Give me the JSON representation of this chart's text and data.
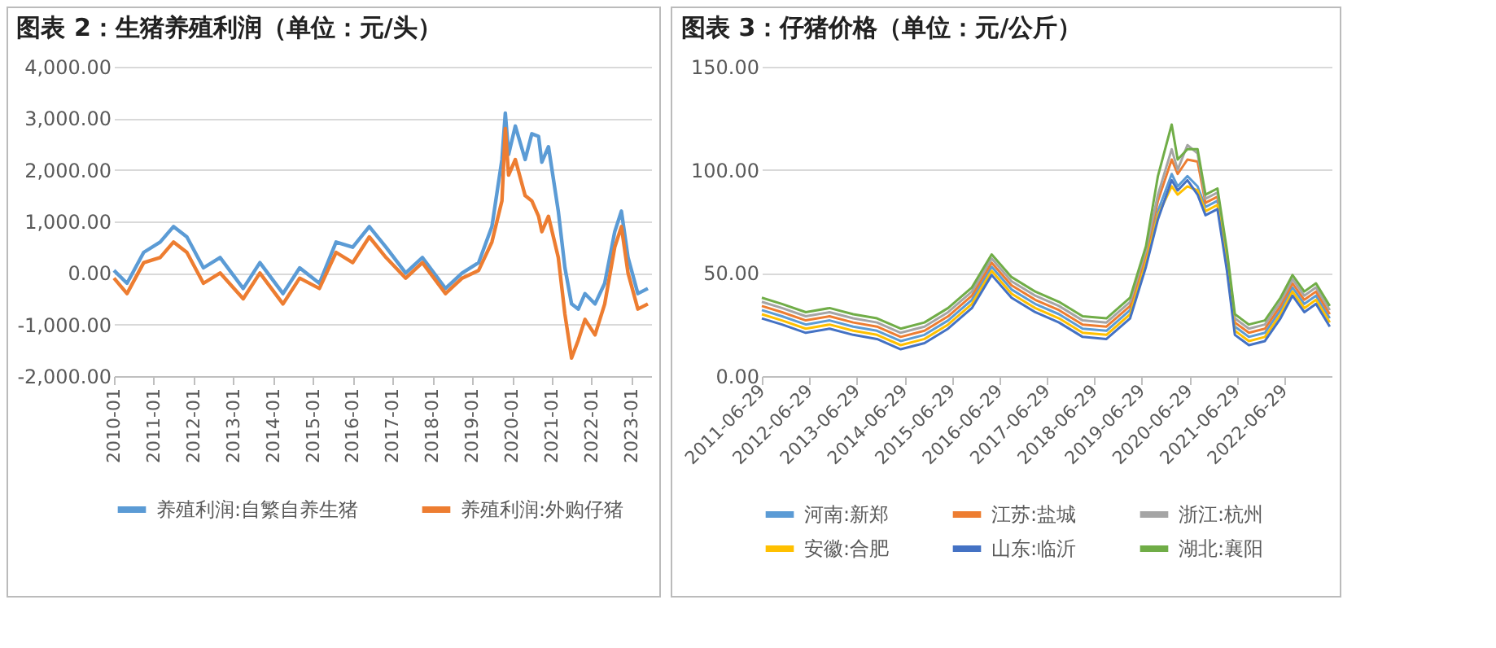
{
  "chart_data": [
    {
      "type": "line",
      "title": "图表 2：生猪养殖利润（单位：元/头）",
      "x": [
        "2010-01",
        "2010-05",
        "2010-10",
        "2011-03",
        "2011-07",
        "2011-11",
        "2012-04",
        "2012-09",
        "2013-04",
        "2013-09",
        "2014-04",
        "2014-09",
        "2015-03",
        "2015-08",
        "2016-01",
        "2016-06",
        "2016-11",
        "2017-05",
        "2017-10",
        "2018-05",
        "2018-10",
        "2019-03",
        "2019-07",
        "2019-10",
        "2019-11",
        "2019-12",
        "2020-02",
        "2020-05",
        "2020-07",
        "2020-09",
        "2020-10",
        "2020-12",
        "2021-03",
        "2021-05",
        "2021-07",
        "2021-09",
        "2021-11",
        "2022-02",
        "2022-05",
        "2022-08",
        "2022-10",
        "2022-12",
        "2023-03",
        "2023-06"
      ],
      "series": [
        {
          "name": "养殖利润:自繁自养生猪",
          "color": "#5b9bd5",
          "values": [
            50,
            -200,
            400,
            600,
            900,
            700,
            100,
            300,
            -300,
            200,
            -400,
            100,
            -200,
            600,
            500,
            900,
            500,
            0,
            300,
            -300,
            0,
            200,
            900,
            2200,
            3100,
            2300,
            2850,
            2200,
            2700,
            2650,
            2150,
            2450,
            1200,
            100,
            -600,
            -700,
            -400,
            -600,
            -200,
            800,
            1200,
            300,
            -400,
            -300
          ]
        },
        {
          "name": "养殖利润:外购仔猪",
          "color": "#ed7d31",
          "values": [
            -100,
            -400,
            200,
            300,
            600,
            400,
            -200,
            0,
            -500,
            0,
            -600,
            -100,
            -300,
            400,
            200,
            700,
            300,
            -100,
            200,
            -400,
            -100,
            50,
            600,
            1400,
            2800,
            1900,
            2200,
            1500,
            1400,
            1100,
            800,
            1100,
            300,
            -800,
            -1650,
            -1300,
            -900,
            -1200,
            -600,
            500,
            900,
            0,
            -700,
            -600
          ]
        }
      ],
      "xlim": [
        "2010-01",
        "2023-07"
      ],
      "xticks": [
        {
          "value": "2010-01",
          "label": "2010-01"
        },
        {
          "value": "2011-01",
          "label": "2011-01"
        },
        {
          "value": "2012-01",
          "label": "2012-01"
        },
        {
          "value": "2013-01",
          "label": "2013-01"
        },
        {
          "value": "2014-01",
          "label": "2014-01"
        },
        {
          "value": "2015-01",
          "label": "2015-01"
        },
        {
          "value": "2016-01",
          "label": "2016-01"
        },
        {
          "value": "2017-01",
          "label": "2017-01"
        },
        {
          "value": "2018-01",
          "label": "2018-01"
        },
        {
          "value": "2019-01",
          "label": "2019-01"
        },
        {
          "value": "2020-01",
          "label": "2020-01"
        },
        {
          "value": "2021-01",
          "label": "2021-01"
        },
        {
          "value": "2022-01",
          "label": "2022-01"
        },
        {
          "value": "2023-01",
          "label": "2023-01"
        }
      ],
      "ylim": [
        -2000,
        4000
      ],
      "yticks": [
        {
          "value": -2000,
          "label": "-2,000.00"
        },
        {
          "value": -1000,
          "label": "-1,000.00"
        },
        {
          "value": 0,
          "label": "0.00"
        },
        {
          "value": 1000,
          "label": "1,000.00"
        },
        {
          "value": 2000,
          "label": "2,000.00"
        },
        {
          "value": 3000,
          "label": "3,000.00"
        },
        {
          "value": 4000,
          "label": "4,000.00"
        }
      ],
      "grid": "y",
      "legend": "bottom"
    },
    {
      "type": "line",
      "title": "图表 3：仔猪价格（单位：元/公斤）",
      "x": [
        "2011-06-29",
        "2011-12-01",
        "2012-06-01",
        "2012-12-01",
        "2013-06-01",
        "2013-12-01",
        "2014-06-01",
        "2014-12-01",
        "2015-06-01",
        "2015-12-01",
        "2016-05-01",
        "2016-10-01",
        "2017-04-01",
        "2017-10-01",
        "2018-04-01",
        "2018-10-01",
        "2019-04-01",
        "2019-08-01",
        "2019-11-01",
        "2020-02-15",
        "2020-04-01",
        "2020-06-15",
        "2020-09-01",
        "2020-11-01",
        "2021-02-01",
        "2021-04-15",
        "2021-06-15",
        "2021-10-01",
        "2022-02-01",
        "2022-06-01",
        "2022-09-01",
        "2022-12-01",
        "2023-03-01",
        "2023-06-15"
      ],
      "series": [
        {
          "name": "河南:新郑",
          "color": "#5b9bd5",
          "values": [
            32,
            29,
            25,
            27,
            24,
            22,
            17,
            20,
            27,
            37,
            53,
            42,
            35,
            30,
            23,
            22,
            32,
            57,
            80,
            98,
            92,
            97,
            92,
            82,
            85,
            55,
            24,
            19,
            21,
            32,
            43,
            35,
            39,
            28
          ]
        },
        {
          "name": "江苏:盐城",
          "color": "#ed7d31",
          "values": [
            34,
            31,
            27,
            29,
            26,
            24,
            19,
            22,
            29,
            39,
            55,
            44,
            37,
            32,
            25,
            24,
            34,
            59,
            85,
            105,
            98,
            105,
            104,
            84,
            87,
            57,
            26,
            21,
            23,
            34,
            45,
            37,
            41,
            30
          ]
        },
        {
          "name": "浙江:杭州",
          "color": "#a5a5a5",
          "values": [
            36,
            33,
            29,
            31,
            28,
            26,
            21,
            24,
            31,
            41,
            57,
            46,
            39,
            34,
            27,
            26,
            36,
            61,
            88,
            110,
            100,
            112,
            108,
            86,
            89,
            59,
            28,
            23,
            25,
            36,
            47,
            39,
            43,
            32
          ]
        },
        {
          "name": "安徽:合肥",
          "color": "#ffc000",
          "values": [
            30,
            27,
            23,
            25,
            22,
            20,
            15,
            18,
            25,
            35,
            51,
            40,
            33,
            28,
            21,
            20,
            30,
            55,
            78,
            92,
            88,
            92,
            90,
            80,
            83,
            53,
            22,
            17,
            19,
            30,
            41,
            33,
            37,
            26
          ]
        },
        {
          "name": "山东:临沂",
          "color": "#4472c4",
          "values": [
            28,
            25,
            21,
            23,
            20,
            18,
            13,
            16,
            23,
            33,
            49,
            38,
            31,
            26,
            19,
            18,
            28,
            53,
            76,
            95,
            90,
            95,
            88,
            78,
            81,
            51,
            20,
            15,
            17,
            28,
            39,
            31,
            35,
            24
          ]
        },
        {
          "name": "湖北:襄阳",
          "color": "#70ad47",
          "values": [
            38,
            35,
            31,
            33,
            30,
            28,
            23,
            26,
            33,
            43,
            59,
            48,
            41,
            36,
            29,
            28,
            38,
            63,
            97,
            122,
            105,
            110,
            110,
            88,
            91,
            61,
            30,
            25,
            27,
            38,
            49,
            41,
            45,
            34
          ]
        }
      ],
      "xlim": [
        "2011-06-29",
        "2023-06-29"
      ],
      "xticks": [
        {
          "value": "2011-06-29",
          "label": "2011-06-29"
        },
        {
          "value": "2012-06-29",
          "label": "2012-06-29"
        },
        {
          "value": "2013-06-29",
          "label": "2013-06-29"
        },
        {
          "value": "2014-06-29",
          "label": "2014-06-29"
        },
        {
          "value": "2015-06-29",
          "label": "2015-06-29"
        },
        {
          "value": "2016-06-29",
          "label": "2016-06-29"
        },
        {
          "value": "2017-06-29",
          "label": "2017-06-29"
        },
        {
          "value": "2018-06-29",
          "label": "2018-06-29"
        },
        {
          "value": "2019-06-29",
          "label": "2019-06-29"
        },
        {
          "value": "2020-06-29",
          "label": "2020-06-29"
        },
        {
          "value": "2021-06-29",
          "label": "2021-06-29"
        },
        {
          "value": "2022-06-29",
          "label": "2022-06-29"
        }
      ],
      "ylim": [
        0,
        150
      ],
      "yticks": [
        {
          "value": 0,
          "label": "0.00"
        },
        {
          "value": 50,
          "label": "50.00"
        },
        {
          "value": 100,
          "label": "100.00"
        },
        {
          "value": 150,
          "label": "150.00"
        }
      ],
      "grid": "y",
      "legend": "bottom"
    }
  ]
}
